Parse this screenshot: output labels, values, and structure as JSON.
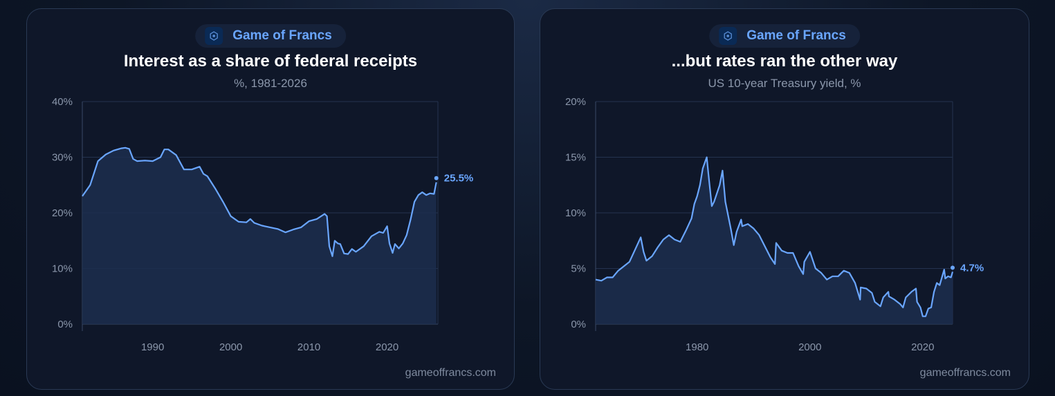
{
  "colors": {
    "line": "#6aa6ff",
    "fill": "#1c2e4e",
    "grid": "#243350",
    "axis": "#8b97ab"
  },
  "cards": [
    {
      "brand": "Game of Francs",
      "logo_icon": "game-of-francs-logo-icon",
      "title": "Interest as a share of federal receipts",
      "subtitle": "%, 1981-2026",
      "footer": "gameoffrancs.com"
    },
    {
      "brand": "Game of Francs",
      "logo_icon": "game-of-francs-logo-icon",
      "title": "...but rates ran the other way",
      "subtitle": "US 10-year Treasury yield, %",
      "footer": "gameoffrancs.com"
    }
  ],
  "chart_data": [
    {
      "type": "area",
      "title": "Interest as a share of federal receipts",
      "subtitle": "%, 1981-2026",
      "xlabel": "",
      "ylabel": "",
      "xlim": [
        1981,
        2026.5
      ],
      "ylim": [
        0,
        40
      ],
      "yticks": [
        0,
        10,
        20,
        30,
        40
      ],
      "ytick_labels": [
        "0%",
        "10%",
        "20%",
        "30%",
        "40%"
      ],
      "xticks": [
        1990,
        2000,
        2010,
        2020
      ],
      "xtick_labels": [
        "1990",
        "2000",
        "2010",
        "2020"
      ],
      "grid": true,
      "end_label": "25.5%",
      "series": [
        {
          "x": [
            1981,
            1982,
            1983,
            1984,
            1985,
            1986,
            1986.5,
            1987,
            1987.5,
            1988,
            1989,
            1990,
            1991,
            1991.5,
            1992,
            1993,
            1994,
            1995,
            1996,
            1996.5,
            1997,
            1998,
            1999,
            2000,
            2001,
            2002,
            2002.5,
            2003,
            2004,
            2005,
            2006,
            2007,
            2008,
            2009,
            2010,
            2011,
            2012,
            2012.3,
            2012.6,
            2013,
            2013.3,
            2013.7,
            2014,
            2014.5,
            2015,
            2015.5,
            2016,
            2017,
            2018,
            2019,
            2019.5,
            2020,
            2020.3,
            2020.7,
            2021,
            2021.5,
            2022,
            2022.5,
            2023,
            2023.5,
            2024,
            2024.5,
            2025,
            2025.5,
            2026,
            2026.3
          ],
          "y": [
            23,
            25,
            29.3,
            30.5,
            31.2,
            31.6,
            31.7,
            31.5,
            29.7,
            29.3,
            29.4,
            29.3,
            30,
            31.4,
            31.4,
            30.4,
            27.8,
            27.8,
            28.3,
            27,
            26.6,
            24.4,
            22,
            19.4,
            18.4,
            18.3,
            18.9,
            18.2,
            17.7,
            17.4,
            17.1,
            16.5,
            17,
            17.4,
            18.5,
            18.9,
            19.8,
            19.4,
            14,
            12.2,
            15,
            14.5,
            14.4,
            12.7,
            12.6,
            13.5,
            13,
            14,
            15.8,
            16.6,
            16.4,
            17.6,
            14.5,
            12.8,
            14.4,
            13.6,
            14.5,
            16,
            18.8,
            22,
            23.2,
            23.7,
            23.2,
            23.5,
            23.4,
            25.5
          ]
        }
      ]
    },
    {
      "type": "line",
      "title": "...but rates ran the other way",
      "subtitle": "US 10-year Treasury yield, %",
      "xlabel": "",
      "ylabel": "",
      "xlim": [
        1962,
        2025.3
      ],
      "ylim": [
        0,
        20
      ],
      "yticks": [
        0,
        5,
        10,
        15,
        20
      ],
      "ytick_labels": [
        "0%",
        "5%",
        "10%",
        "15%",
        "20%"
      ],
      "xticks": [
        1980,
        2000,
        2020
      ],
      "xtick_labels": [
        "1980",
        "2000",
        "2020"
      ],
      "grid": true,
      "end_label": "4.7%",
      "series": [
        {
          "x": [
            1962,
            1963,
            1964,
            1965,
            1966,
            1967,
            1968,
            1969,
            1970,
            1970.5,
            1971,
            1972,
            1973,
            1974,
            1975,
            1976,
            1977,
            1978,
            1979,
            1979.5,
            1980,
            1980.5,
            1981,
            1981.7,
            1982,
            1982.6,
            1983,
            1984,
            1984.5,
            1985,
            1986,
            1986.5,
            1987,
            1987.8,
            1988,
            1989,
            1990,
            1991,
            1992,
            1993,
            1993.8,
            1994,
            1995,
            1996,
            1997,
            1998,
            1998.8,
            1999,
            2000,
            2001,
            2002,
            2003,
            2004,
            2005,
            2006,
            2007,
            2008,
            2008.9,
            2009,
            2010,
            2011,
            2011.5,
            2012,
            2012.5,
            2013,
            2013.9,
            2014,
            2015,
            2016,
            2016.5,
            2017,
            2018,
            2018.8,
            2019,
            2019.6,
            2020,
            2020.5,
            2021,
            2021.5,
            2022,
            2022.5,
            2023,
            2023.8,
            2024,
            2024.5,
            2025,
            2025.3
          ],
          "y": [
            4,
            3.9,
            4.2,
            4.2,
            4.8,
            5.2,
            5.6,
            6.7,
            7.8,
            6.5,
            5.7,
            6.1,
            6.9,
            7.6,
            8,
            7.6,
            7.4,
            8.4,
            9.5,
            10.8,
            11.5,
            12.5,
            14,
            15,
            13.5,
            10.6,
            11,
            12.5,
            13.8,
            11,
            8.5,
            7.1,
            8.3,
            9.4,
            8.8,
            9,
            8.6,
            8,
            7,
            6,
            5.4,
            7.3,
            6.6,
            6.4,
            6.4,
            5.2,
            4.5,
            5.6,
            6.5,
            5,
            4.6,
            4,
            4.3,
            4.3,
            4.8,
            4.6,
            3.7,
            2.2,
            3.3,
            3.2,
            2.8,
            2,
            1.8,
            1.6,
            2.4,
            2.9,
            2.5,
            2.2,
            1.8,
            1.5,
            2.4,
            2.9,
            3.2,
            2,
            1.5,
            0.7,
            0.7,
            1.4,
            1.5,
            2.9,
            3.7,
            3.5,
            4.9,
            4.1,
            4.3,
            4.2,
            4.7
          ]
        }
      ]
    }
  ]
}
